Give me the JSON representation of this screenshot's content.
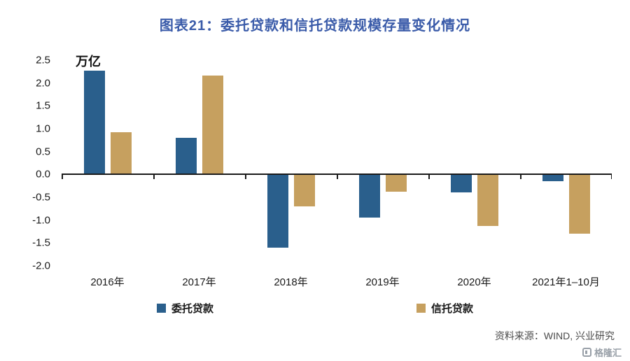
{
  "title": "图表21：委托贷款和信托贷款规模存量变化情况",
  "unit_label": "万亿",
  "chart_data": {
    "type": "bar",
    "categories": [
      "2016年",
      "2017年",
      "2018年",
      "2019年",
      "2020年",
      "2021年1–10月"
    ],
    "series": [
      {
        "name": "委托贷款",
        "color": "#2a5f8c",
        "values": [
          2.27,
          0.8,
          -1.6,
          -0.95,
          -0.4,
          -0.15
        ]
      },
      {
        "name": "信托贷款",
        "color": "#c6a05f",
        "values": [
          0.93,
          2.17,
          -0.7,
          -0.37,
          -1.12,
          -1.3
        ]
      }
    ],
    "ylim": [
      -2.0,
      2.5
    ],
    "yticks": [
      2.5,
      2.0,
      1.5,
      1.0,
      0.5,
      0.0,
      -0.5,
      -1.0,
      -1.5,
      -2.0
    ],
    "ytick_format_decimals": 1,
    "legend_position": "bottom",
    "grid": false,
    "axis_color": "#1a1a1a"
  },
  "source": "资料来源：WIND, 兴业研究",
  "watermark": "格隆汇",
  "colors": {
    "title": "#3a5ba9",
    "series_entrusted": "#2a5f8c",
    "series_trust": "#c6a05f"
  }
}
